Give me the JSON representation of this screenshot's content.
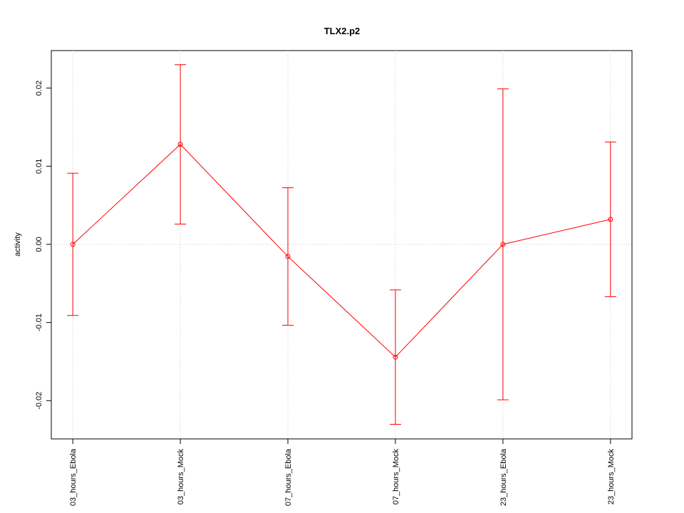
{
  "chart_data": {
    "type": "errorbar",
    "title": "TLX2.p2",
    "y_label": "activity",
    "categories": [
      "03_hours_Ebola",
      "03_hours_Mock",
      "07_hours_Ebola",
      "07_hours_Mock",
      "23_hours_Ebola",
      "23_hours_Mock"
    ],
    "series": [
      {
        "name": "activity",
        "color": "#ff0000",
        "values": [
          0.0,
          0.0128,
          -0.00155,
          -0.01443,
          0.0,
          0.0032
        ],
        "errors": [
          0.0091,
          0.0102,
          0.0088,
          0.0086,
          0.0199,
          0.0099
        ]
      }
    ],
    "ylim": [
      -0.0249,
      0.0248
    ],
    "yticks": [
      -0.02,
      -0.01,
      {
        "value": 0,
        "label": "0.00"
      },
      0.01,
      0.02
    ],
    "grid": true
  }
}
